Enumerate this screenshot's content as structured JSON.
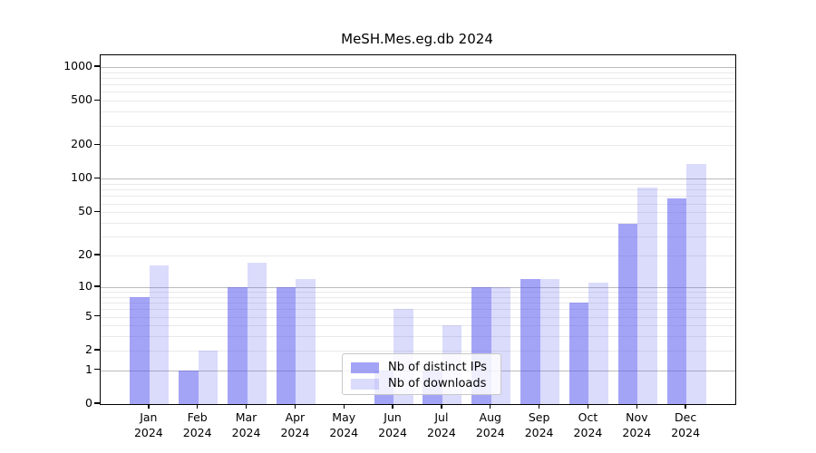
{
  "chart_data": {
    "type": "bar",
    "title": "MeSH.Mes.eg.db 2024",
    "categories": [
      "Jan",
      "Feb",
      "Mar",
      "Apr",
      "May",
      "Jun",
      "Jul",
      "Aug",
      "Sep",
      "Oct",
      "Nov",
      "Dec"
    ],
    "x_year": "2024",
    "series": [
      {
        "name": "Nb of distinct IPs",
        "color": "#a5a5f6",
        "values": [
          8,
          1,
          10,
          10,
          0,
          1,
          1,
          10,
          12,
          7,
          39,
          67
        ]
      },
      {
        "name": "Nb of downloads",
        "color": "#dbdbfa",
        "values": [
          16,
          2,
          17,
          12,
          0,
          6,
          4,
          10,
          12,
          11,
          84,
          135
        ]
      }
    ],
    "y_scale": "log10(1+v)",
    "ylim": [
      0,
      1200
    ],
    "y_ticks": [
      0,
      1,
      2,
      5,
      10,
      20,
      50,
      100,
      200,
      500,
      1000
    ],
    "y_tick_labels": [
      "0",
      "1",
      "2",
      "5",
      "10",
      "20",
      "50",
      "100",
      "200",
      "500",
      "1000"
    ],
    "y_major_gridlines": [
      1,
      10,
      100,
      1000
    ],
    "y_minor_gridlines": [
      2,
      3,
      4,
      5,
      6,
      7,
      8,
      9,
      20,
      30,
      40,
      50,
      60,
      70,
      80,
      90,
      200,
      300,
      400,
      500,
      600,
      700,
      800,
      900
    ],
    "grid": "on",
    "legend_position": "bottom-center",
    "xlabel": "",
    "ylabel": ""
  }
}
